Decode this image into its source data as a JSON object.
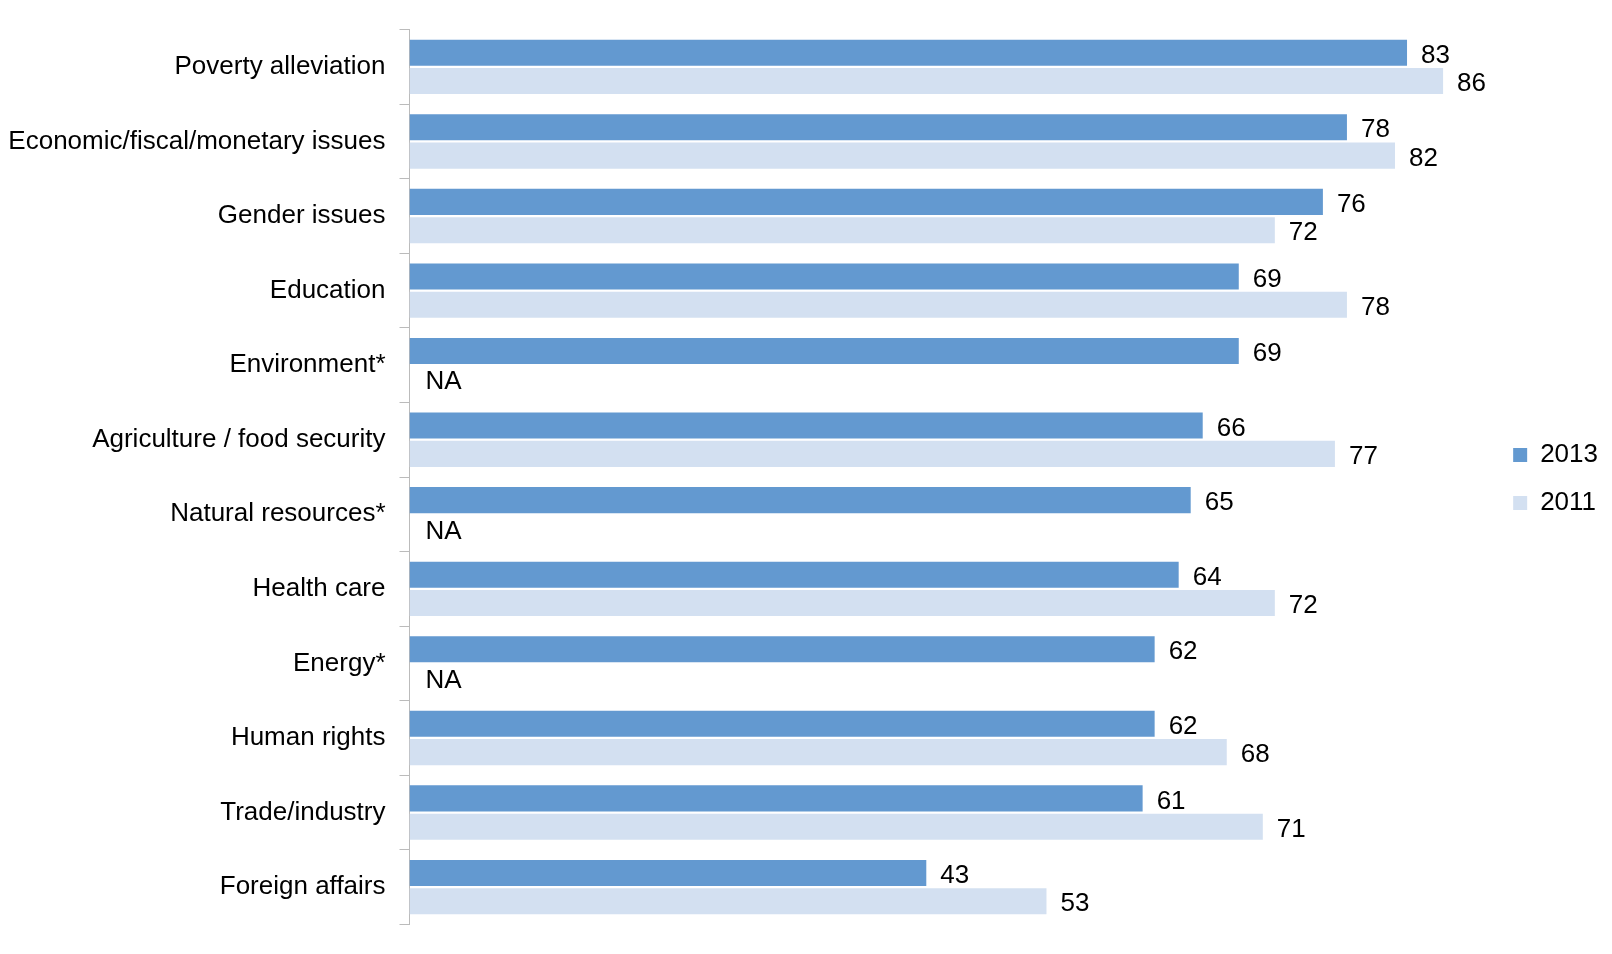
{
  "chart_data": {
    "type": "bar",
    "orientation": "horizontal",
    "legend": "right",
    "categories": [
      "Poverty alleviation",
      "Economic/fiscal/monetary issues",
      "Gender issues",
      "Education",
      "Environment*",
      "Agriculture / food security",
      "Natural resources*",
      "Health care",
      "Energy*",
      "Human rights",
      "Trade/industry",
      "Foreign affairs"
    ],
    "series": [
      {
        "name": "2013",
        "color": "#6399d0",
        "values": [
          83,
          78,
          76,
          69,
          69,
          66,
          65,
          64,
          62,
          62,
          61,
          43
        ],
        "value_labels": [
          "83",
          "78",
          "76",
          "69",
          "69",
          "66",
          "65",
          "64",
          "62",
          "62",
          "61",
          "43"
        ]
      },
      {
        "name": "2011",
        "color": "#d3e0f1",
        "values": [
          86,
          82,
          72,
          78,
          null,
          77,
          null,
          72,
          null,
          68,
          71,
          53
        ],
        "value_labels": [
          "86",
          "82",
          "72",
          "78",
          "NA",
          "77",
          "NA",
          "72",
          "NA",
          "68",
          "71",
          "53"
        ]
      }
    ]
  }
}
